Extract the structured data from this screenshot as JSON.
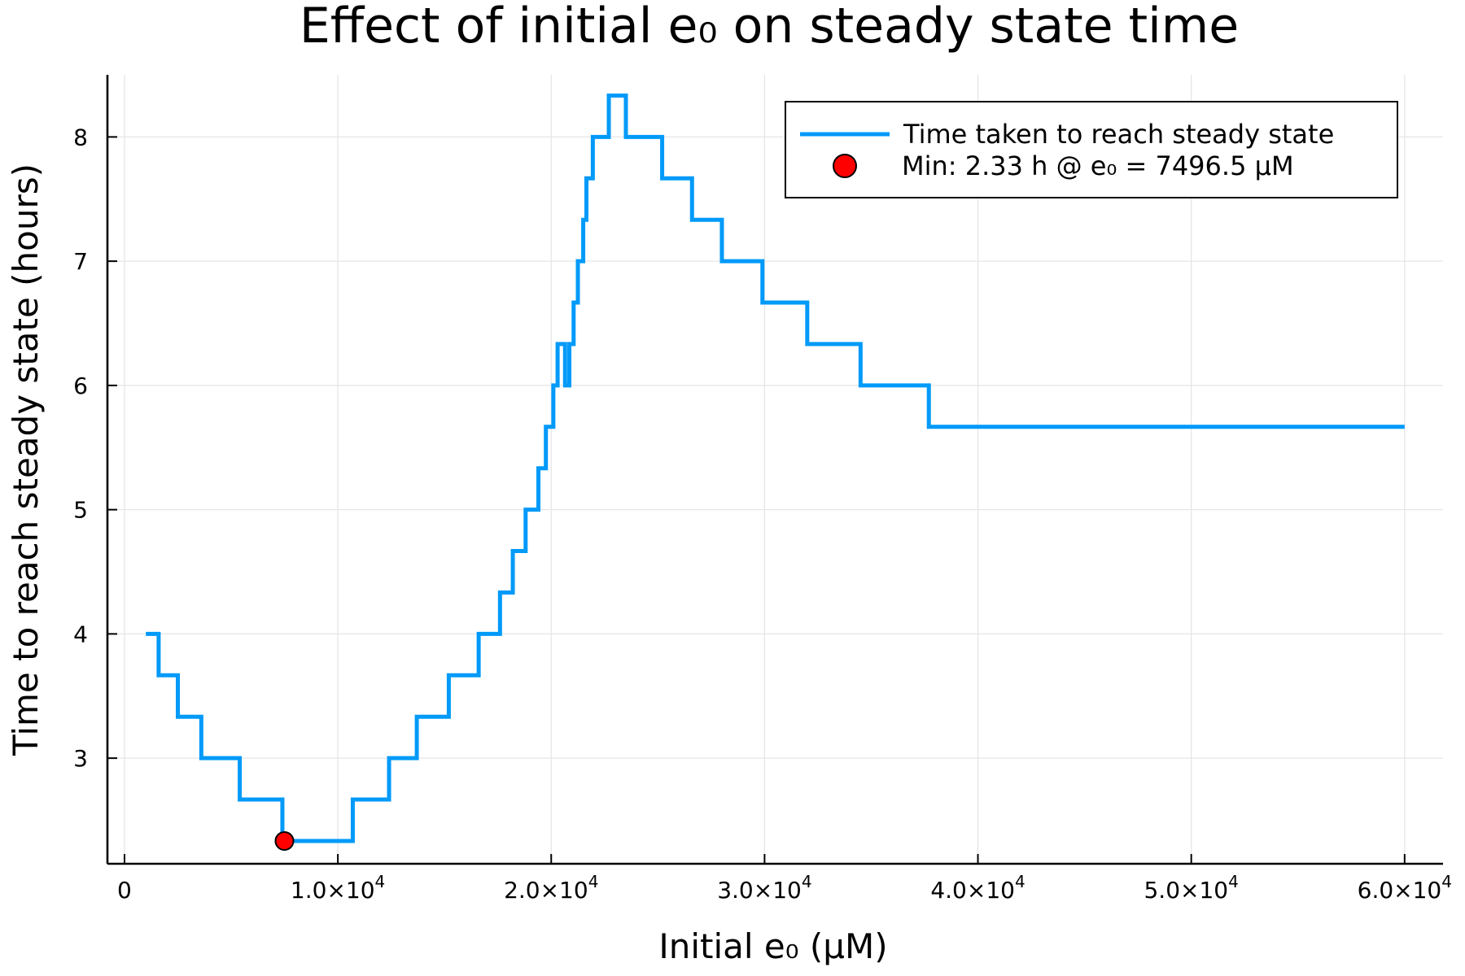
{
  "chart_data": {
    "type": "line",
    "title": "Effect of initial e₀ on steady state time",
    "xlabel": "Initial e₀ (μM)",
    "ylabel": "Time to reach steady state (hours)",
    "xlim": [
      -800,
      61800
    ],
    "ylim": [
      2.15,
      8.5
    ],
    "grid": true,
    "legend_position": "top-right",
    "x_ticks": [
      {
        "value": 0,
        "mantissa": "0",
        "exponent": ""
      },
      {
        "value": 10000,
        "mantissa": "1.0×10",
        "exponent": "4"
      },
      {
        "value": 20000,
        "mantissa": "2.0×10",
        "exponent": "4"
      },
      {
        "value": 30000,
        "mantissa": "3.0×10",
        "exponent": "4"
      },
      {
        "value": 40000,
        "mantissa": "4.0×10",
        "exponent": "4"
      },
      {
        "value": 50000,
        "mantissa": "5.0×10",
        "exponent": "4"
      },
      {
        "value": 60000,
        "mantissa": "6.0×10",
        "exponent": "4"
      }
    ],
    "y_ticks": [
      {
        "value": 3,
        "label": "3"
      },
      {
        "value": 4,
        "label": "4"
      },
      {
        "value": 5,
        "label": "5"
      },
      {
        "value": 6,
        "label": "6"
      },
      {
        "value": 7,
        "label": "7"
      },
      {
        "value": 8,
        "label": "8"
      }
    ],
    "series": [
      {
        "name": "Time taken to reach steady state",
        "color": "#009af9",
        "style": "step",
        "x": [
          1000,
          1600,
          1600,
          2500,
          2500,
          3600,
          3600,
          5400,
          5400,
          7400,
          7400,
          10700,
          10700,
          12400,
          12400,
          13700,
          13700,
          15200,
          15200,
          16600,
          16600,
          17600,
          17600,
          18200,
          18200,
          18800,
          18800,
          19400,
          19400,
          19750,
          19750,
          20100,
          20100,
          20300,
          20300,
          20650,
          20650,
          20850,
          20850,
          21050,
          21050,
          21250,
          21250,
          21500,
          21500,
          21650,
          21650,
          21950,
          21950,
          22700,
          22700,
          23500,
          23500,
          25200,
          25200,
          26600,
          26600,
          28000,
          28000,
          29900,
          29900,
          32000,
          32000,
          34500,
          34500,
          37700,
          37700,
          60000
        ],
        "y": [
          4.0,
          4.0,
          3.667,
          3.667,
          3.333,
          3.333,
          3.0,
          3.0,
          2.667,
          2.667,
          2.333,
          2.333,
          2.667,
          2.667,
          3.0,
          3.0,
          3.333,
          3.333,
          3.667,
          3.667,
          4.0,
          4.0,
          4.333,
          4.333,
          4.667,
          4.667,
          5.0,
          5.0,
          5.333,
          5.333,
          5.667,
          5.667,
          6.0,
          6.0,
          6.333,
          6.333,
          6.0,
          6.0,
          6.333,
          6.333,
          6.667,
          6.667,
          7.0,
          7.0,
          7.333,
          7.333,
          7.667,
          7.667,
          8.0,
          8.0,
          8.333,
          8.333,
          8.0,
          8.0,
          7.667,
          7.667,
          7.333,
          7.333,
          7.0,
          7.0,
          6.667,
          6.667,
          6.333,
          6.333,
          6.0,
          6.0,
          5.667,
          5.667
        ]
      },
      {
        "name": "Min: 2.33 h @ e₀ = 7496.5 μM",
        "type": "scatter",
        "color": "#ff0000",
        "x": [
          7496.5
        ],
        "y": [
          2.333
        ]
      }
    ]
  }
}
